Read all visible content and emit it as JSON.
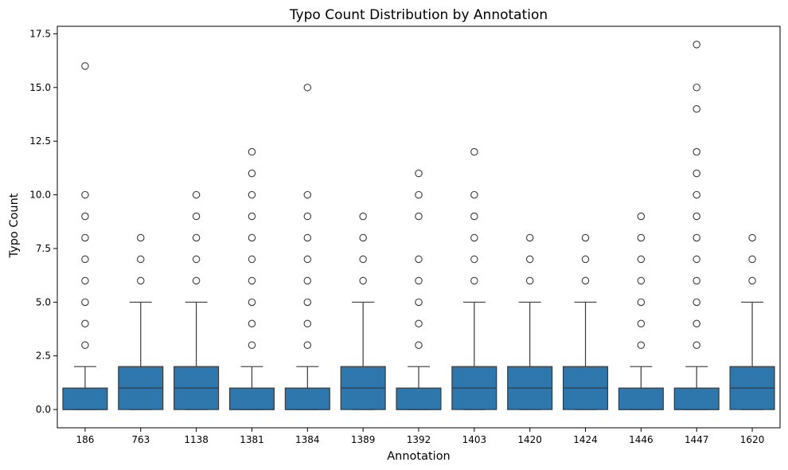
{
  "chart_data": {
    "type": "box",
    "title": "Typo Count Distribution by Annotation",
    "xlabel": "Annotation",
    "ylabel": "Typo Count",
    "ylim": [
      -0.85,
      17.85
    ],
    "yticks": [
      "0.0",
      "2.5",
      "5.0",
      "7.5",
      "10.0",
      "12.5",
      "15.0",
      "17.5"
    ],
    "grid": false,
    "box_color": "#2d77ad",
    "line_color": "#3a3a3a",
    "categories": [
      "186",
      "763",
      "1138",
      "1381",
      "1384",
      "1389",
      "1392",
      "1403",
      "1420",
      "1424",
      "1446",
      "1447",
      "1620"
    ],
    "boxes": [
      {
        "q1": 0,
        "median": 0,
        "q3": 1,
        "whisker_low": 0,
        "whisker_high": 2,
        "outliers": [
          3,
          4,
          5,
          6,
          7,
          8,
          9,
          10,
          16
        ]
      },
      {
        "q1": 0,
        "median": 1,
        "q3": 2,
        "whisker_low": 0,
        "whisker_high": 5,
        "outliers": [
          6,
          7,
          8
        ]
      },
      {
        "q1": 0,
        "median": 1,
        "q3": 2,
        "whisker_low": 0,
        "whisker_high": 5,
        "outliers": [
          6,
          7,
          8,
          9,
          10
        ]
      },
      {
        "q1": 0,
        "median": 0,
        "q3": 1,
        "whisker_low": 0,
        "whisker_high": 2,
        "outliers": [
          3,
          4,
          5,
          6,
          7,
          8,
          9,
          10,
          11,
          12
        ]
      },
      {
        "q1": 0,
        "median": 0,
        "q3": 1,
        "whisker_low": 0,
        "whisker_high": 2,
        "outliers": [
          3,
          4,
          5,
          6,
          7,
          8,
          9,
          10,
          15
        ]
      },
      {
        "q1": 0,
        "median": 1,
        "q3": 2,
        "whisker_low": 0,
        "whisker_high": 5,
        "outliers": [
          6,
          7,
          8,
          9
        ]
      },
      {
        "q1": 0,
        "median": 0,
        "q3": 1,
        "whisker_low": 0,
        "whisker_high": 2,
        "outliers": [
          3,
          4,
          5,
          6,
          7,
          9,
          10,
          11
        ]
      },
      {
        "q1": 0,
        "median": 1,
        "q3": 2,
        "whisker_low": 0,
        "whisker_high": 5,
        "outliers": [
          6,
          7,
          8,
          9,
          10,
          12
        ]
      },
      {
        "q1": 0,
        "median": 1,
        "q3": 2,
        "whisker_low": 0,
        "whisker_high": 5,
        "outliers": [
          6,
          7,
          8
        ]
      },
      {
        "q1": 0,
        "median": 1,
        "q3": 2,
        "whisker_low": 0,
        "whisker_high": 5,
        "outliers": [
          6,
          7,
          8
        ]
      },
      {
        "q1": 0,
        "median": 0,
        "q3": 1,
        "whisker_low": 0,
        "whisker_high": 2,
        "outliers": [
          3,
          4,
          5,
          6,
          7,
          8,
          9
        ]
      },
      {
        "q1": 0,
        "median": 0,
        "q3": 1,
        "whisker_low": 0,
        "whisker_high": 2,
        "outliers": [
          3,
          4,
          5,
          6,
          7,
          8,
          9,
          10,
          11,
          12,
          14,
          15,
          17
        ]
      },
      {
        "q1": 0,
        "median": 1,
        "q3": 2,
        "whisker_low": 0,
        "whisker_high": 5,
        "outliers": [
          6,
          7,
          8
        ]
      }
    ]
  }
}
